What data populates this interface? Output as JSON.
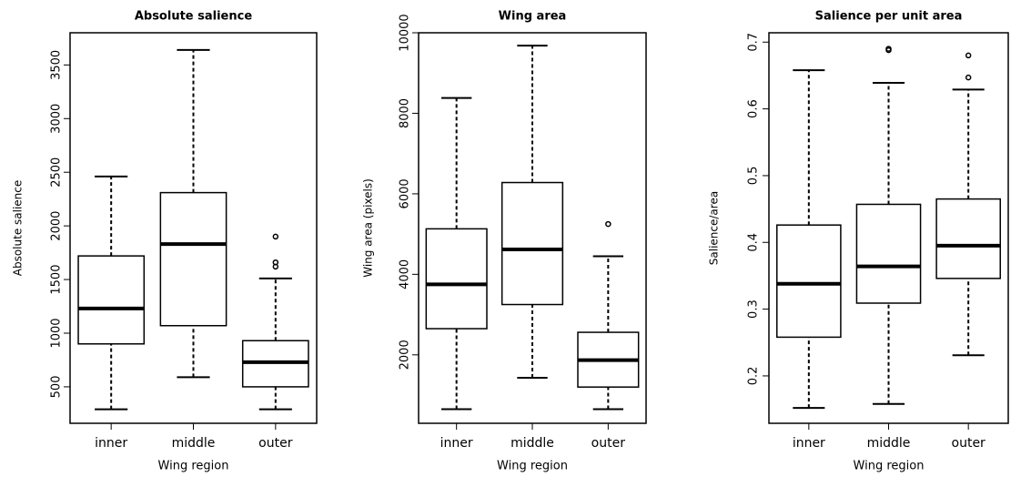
{
  "chart_data": [
    {
      "type": "box",
      "title": "Absolute salience",
      "xlabel": "Wing region",
      "ylabel": "Absolute salience",
      "categories": [
        "inner",
        "middle",
        "outer"
      ],
      "boxes": [
        {
          "min": 290,
          "q1": 900,
          "median": 1230,
          "q3": 1720,
          "max": 2460,
          "outliers": []
        },
        {
          "min": 590,
          "q1": 1070,
          "median": 1830,
          "q3": 2310,
          "max": 3640,
          "outliers": []
        },
        {
          "min": 290,
          "q1": 500,
          "median": 730,
          "q3": 930,
          "max": 1510,
          "outliers": [
            1620,
            1660,
            1900
          ]
        }
      ],
      "ylim": [
        160,
        3800
      ],
      "yticks": [
        500,
        1000,
        1500,
        2000,
        2500,
        3000,
        3500
      ],
      "color": "#000000"
    },
    {
      "type": "box",
      "title": "Wing area",
      "xlabel": "Wing region",
      "ylabel": "Wing area (pixels)",
      "categories": [
        "inner",
        "middle",
        "outer"
      ],
      "boxes": [
        {
          "min": 650,
          "q1": 2650,
          "median": 3750,
          "q3": 5130,
          "max": 8380,
          "outliers": []
        },
        {
          "min": 1430,
          "q1": 3250,
          "median": 4620,
          "q3": 6280,
          "max": 9680,
          "outliers": []
        },
        {
          "min": 650,
          "q1": 1200,
          "median": 1870,
          "q3": 2560,
          "max": 4450,
          "outliers": [
            5250
          ]
        }
      ],
      "ylim": [
        300,
        10000
      ],
      "yticks": [
        2000,
        4000,
        6000,
        8000,
        10000
      ],
      "color": "#000000"
    },
    {
      "type": "box",
      "title": "Salience per unit area",
      "xlabel": "Wing region",
      "ylabel": "Salience/area",
      "categories": [
        "inner",
        "middle",
        "outer"
      ],
      "boxes": [
        {
          "min": 0.152,
          "q1": 0.258,
          "median": 0.338,
          "q3": 0.426,
          "max": 0.658,
          "outliers": []
        },
        {
          "min": 0.158,
          "q1": 0.309,
          "median": 0.364,
          "q3": 0.457,
          "max": 0.639,
          "outliers": [
            0.688,
            0.69
          ]
        },
        {
          "min": 0.231,
          "q1": 0.346,
          "median": 0.395,
          "q3": 0.465,
          "max": 0.629,
          "outliers": [
            0.647,
            0.68
          ]
        }
      ],
      "ylim": [
        0.129,
        0.714
      ],
      "yticks": [
        0.2,
        0.3,
        0.4,
        0.5,
        0.6,
        0.7
      ],
      "color": "#000000"
    }
  ]
}
